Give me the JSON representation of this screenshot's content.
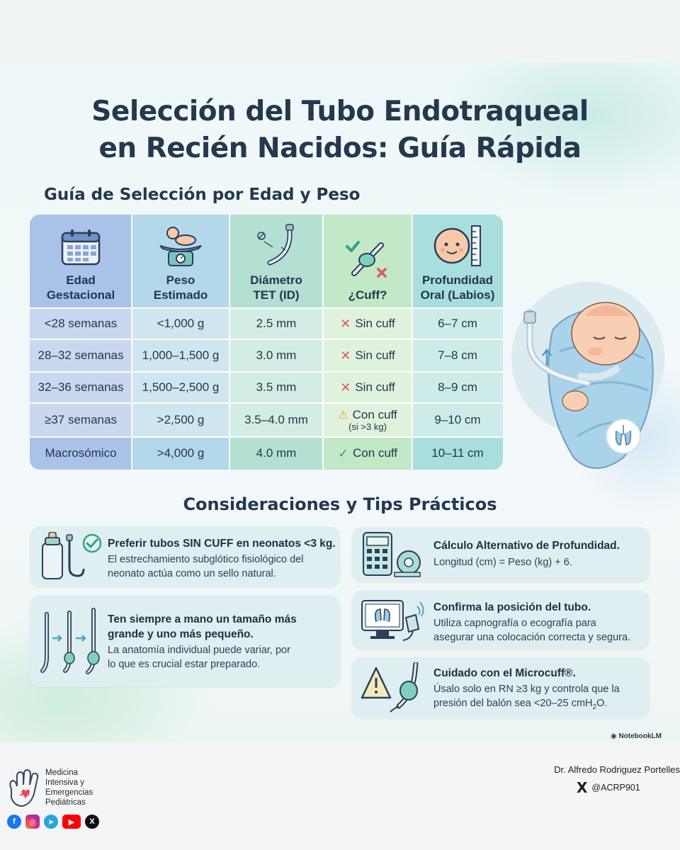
{
  "title_line1": "Selección del Tubo Endotraqueal",
  "title_line2": "en Recién Nacidos: Guía Rápida",
  "table_title": "Guía de Selección por Edad y Peso",
  "table": {
    "headers": [
      {
        "line1": "Edad",
        "line2": "Gestacional",
        "icon": "calendar-icon"
      },
      {
        "line1": "Peso",
        "line2": "Estimado",
        "icon": "baby-scale-icon"
      },
      {
        "line1": "Diámetro",
        "line2": "TET (ID)",
        "icon": "endotracheal-tube-icon"
      },
      {
        "line1": "¿Cuff?",
        "line2": "",
        "icon": "cuff-icon"
      },
      {
        "line1": "Profundidad",
        "line2": "Oral (Labios)",
        "icon": "baby-ruler-icon"
      }
    ],
    "rows": [
      {
        "age": "<28 semanas",
        "weight": "<1,000 g",
        "diameter": "2.5 mm",
        "cuff": "Sin cuff",
        "cuff_note": "",
        "cuff_status": "no",
        "depth": "6–7 cm"
      },
      {
        "age": "28–32 semanas",
        "weight": "1,000–1,500 g",
        "diameter": "3.0 mm",
        "cuff": "Sin cuff",
        "cuff_note": "",
        "cuff_status": "no",
        "depth": "7–8 cm"
      },
      {
        "age": "32–36 semanas",
        "weight": "1,500–2,500 g",
        "diameter": "3.5 mm",
        "cuff": "Sin cuff",
        "cuff_note": "",
        "cuff_status": "no",
        "depth": "8–9 cm"
      },
      {
        "age": "≥37 semanas",
        "weight": ">2,500 g",
        "diameter": "3.5–4.0 mm",
        "cuff": "Con cuff",
        "cuff_note": "(si >3 kg)",
        "cuff_status": "warning",
        "depth": "9–10 cm"
      },
      {
        "age": "Macrosómico",
        "weight": ">4,000 g",
        "diameter": "4.0 mm",
        "cuff": "Con cuff",
        "cuff_note": "",
        "cuff_status": "yes",
        "depth": "10–11 cm"
      }
    ],
    "colors": {
      "age": "#a9c3e8",
      "weight": "#b2d8ea",
      "diameter": "#b3e0d3",
      "cuff": "#c2e8c6",
      "depth": "#a8dede"
    }
  },
  "tips_title": "Consideraciones y Tips Prácticos",
  "tips": {
    "t1": {
      "title": "Preferir tubos SIN CUFF en neonatos <3 kg.",
      "body1": "El estrechamiento subglótico fisiológico del",
      "body2": "neonato actúa como un sello natural."
    },
    "t2": {
      "title1": "Ten siempre a mano un tamaño más",
      "title2": "grande y uno más pequeño.",
      "body1": "La anatomía individual puede variar, por",
      "body2": "lo que es crucial estar preparado."
    },
    "t3": {
      "title": "Cálculo Alternativo de Profundidad.",
      "body1": "Longitud (cm) = Peso (kg) + 6."
    },
    "t4": {
      "title": "Confirma la posición del tubo.",
      "body1": "Utiliza capnografía o ecografía para",
      "body2": "asegurar una colocación correcta y segura."
    },
    "t5": {
      "title": "Cuidado con el Microcuff®.",
      "body1": "Úsalo solo en RN ≥3 kg y controla que la",
      "body2_pre": "presión del balón sea <20–25 cmH",
      "body2_sub": "2",
      "body2_post": "O."
    }
  },
  "watermark": "NotebookLM",
  "footer": {
    "org_line1": "Medicina",
    "org_line2": "Intensiva y",
    "org_line3": "Emergencias",
    "org_line4": "Pediátricas",
    "author": "Dr. Alfredo Rodriguez Portelles",
    "handle": "@ACRP901",
    "social": [
      "facebook-icon",
      "instagram-icon",
      "telegram-icon",
      "youtube-icon",
      "x-icon"
    ]
  }
}
